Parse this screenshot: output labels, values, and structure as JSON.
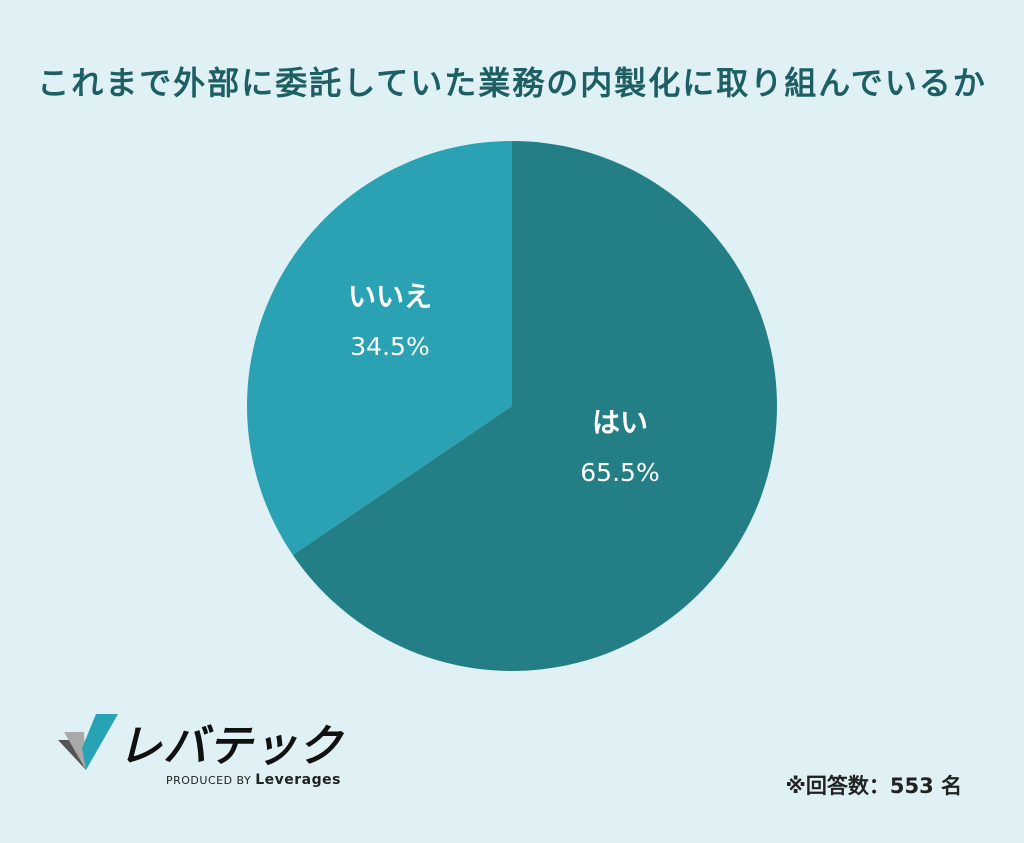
{
  "chart_data": {
    "type": "pie",
    "title": "これまで外部に委託していた業務の内製化に取り組んでいるか",
    "slices": [
      {
        "label": "はい",
        "value": 65.5,
        "value_label": "65.5%",
        "color": "#237f85"
      },
      {
        "label": "いいえ",
        "value": 34.5,
        "value_label": "34.5%",
        "color": "#2aa2b3"
      }
    ],
    "start": "12 o'clock",
    "direction": "clockwise"
  },
  "logo": {
    "name": "レバテック",
    "produced_by_prefix": "PRODUCED BY",
    "produced_by_brand": "Leverages"
  },
  "footnote": "※回答数：553 名"
}
